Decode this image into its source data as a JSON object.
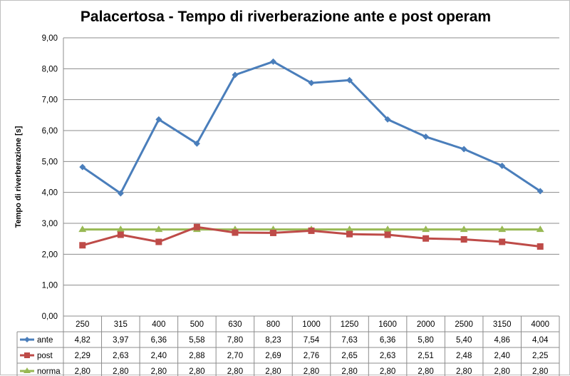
{
  "chart_data": {
    "type": "line",
    "title": "Palacertosa - Tempo di riverberazione ante e post operam",
    "ylabel": "Tempo di riverberazione [s]",
    "xlabel": "",
    "ylim": [
      0,
      9
    ],
    "yticks": [
      "0,00",
      "1,00",
      "2,00",
      "3,00",
      "4,00",
      "5,00",
      "6,00",
      "7,00",
      "8,00",
      "9,00"
    ],
    "grid": true,
    "legend": "data-table",
    "categories": [
      "250",
      "315",
      "400",
      "500",
      "630",
      "800",
      "1000",
      "1250",
      "1600",
      "2000",
      "2500",
      "3150",
      "4000"
    ],
    "series": [
      {
        "name": "ante",
        "color": "#4a7ebb",
        "marker": "diamond",
        "values": [
          4.82,
          3.97,
          6.36,
          5.58,
          7.8,
          8.23,
          7.54,
          7.63,
          6.36,
          5.8,
          5.4,
          4.86,
          4.04
        ],
        "labels": [
          "4,82",
          "3,97",
          "6,36",
          "5,58",
          "7,80",
          "8,23",
          "7,54",
          "7,63",
          "6,36",
          "5,80",
          "5,40",
          "4,86",
          "4,04"
        ]
      },
      {
        "name": "post",
        "color": "#be4b48",
        "marker": "square",
        "values": [
          2.29,
          2.63,
          2.4,
          2.88,
          2.7,
          2.69,
          2.76,
          2.65,
          2.63,
          2.51,
          2.48,
          2.4,
          2.25
        ],
        "labels": [
          "2,29",
          "2,63",
          "2,40",
          "2,88",
          "2,70",
          "2,69",
          "2,76",
          "2,65",
          "2,63",
          "2,51",
          "2,48",
          "2,40",
          "2,25"
        ]
      },
      {
        "name": "norma",
        "color": "#98b954",
        "marker": "triangle",
        "values": [
          2.8,
          2.8,
          2.8,
          2.8,
          2.8,
          2.8,
          2.8,
          2.8,
          2.8,
          2.8,
          2.8,
          2.8,
          2.8
        ],
        "labels": [
          "2,80",
          "2,80",
          "2,80",
          "2,80",
          "2,80",
          "2,80",
          "2,80",
          "2,80",
          "2,80",
          "2,80",
          "2,80",
          "2,80",
          "2,80"
        ]
      }
    ]
  }
}
